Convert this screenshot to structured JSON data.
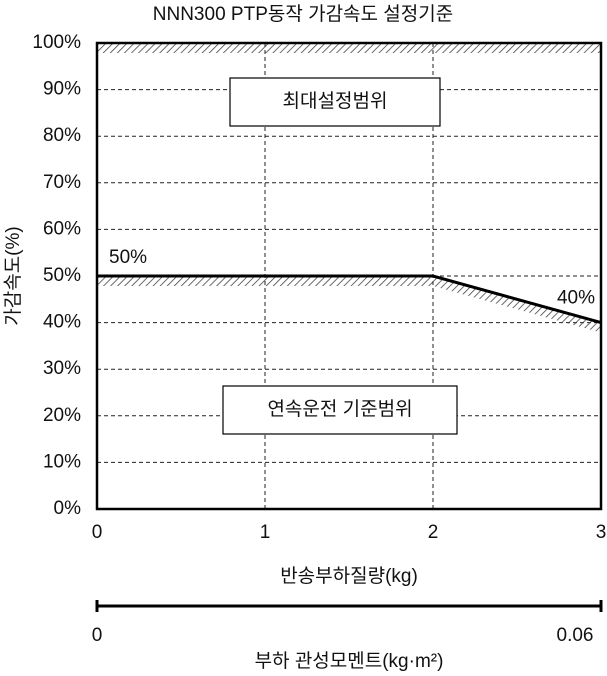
{
  "chart_data": {
    "type": "line",
    "title": "NNN300 PTP동작 가감속도 설정기준",
    "x": [
      0,
      2,
      3
    ],
    "values": [
      50,
      50,
      40
    ],
    "value_labels": [
      "50%",
      null,
      "40%"
    ],
    "color": "#000000",
    "xlim": [
      0,
      3
    ],
    "xticks": [
      0,
      1,
      2,
      3
    ],
    "ylim": [
      0,
      100
    ],
    "yticks": [
      {
        "value": 0,
        "label": "0%"
      },
      {
        "value": 10,
        "label": "10%"
      },
      {
        "value": 20,
        "label": "20%"
      },
      {
        "value": 30,
        "label": "30%"
      },
      {
        "value": 40,
        "label": "40%"
      },
      {
        "value": 50,
        "label": "50%"
      },
      {
        "value": 60,
        "label": "60%"
      },
      {
        "value": 70,
        "label": "70%"
      },
      {
        "value": 80,
        "label": "80%"
      },
      {
        "value": 90,
        "label": "90%"
      },
      {
        "value": 100,
        "label": "100%"
      }
    ],
    "xlabel": "반송부하질량(kg)",
    "ylabel": "가감속도(%)",
    "x2lim": [
      0,
      0.06
    ],
    "x2ticks": [
      0,
      0.06
    ],
    "x2label": "부하 관성모멘트(kg·m²)",
    "annotations": [
      "최대설정범위",
      "연속운전 기준범위"
    ],
    "grid": true
  }
}
